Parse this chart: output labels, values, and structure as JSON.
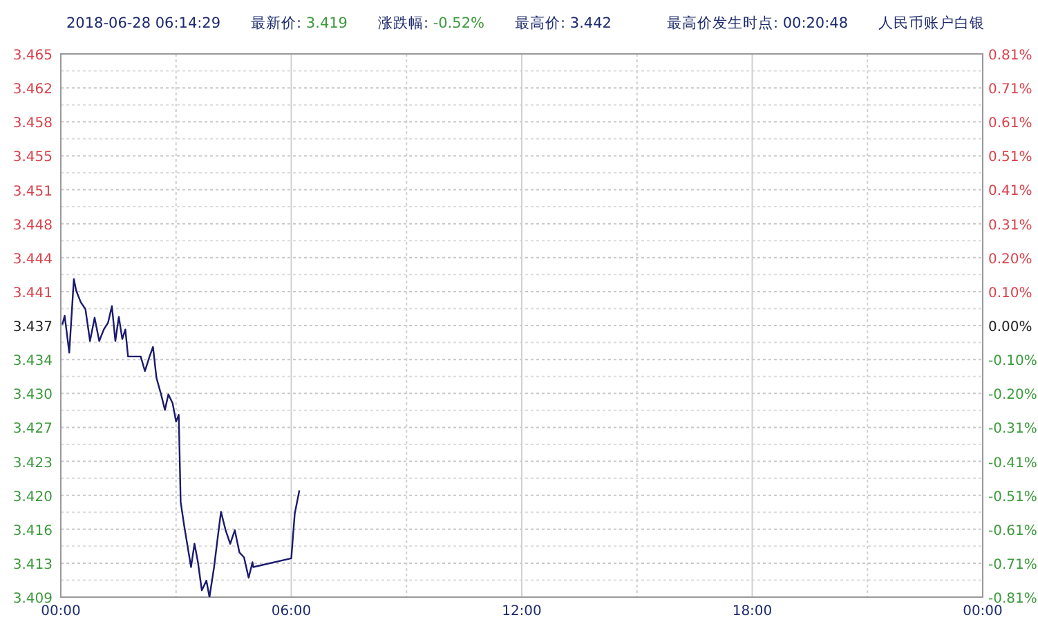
{
  "chart_data": {
    "type": "line",
    "title": "人民币账户白银",
    "annotations": [
      "2018-06-28 06:14:29",
      "最新价: 3.419",
      "涨跌幅: -0.52%",
      "最高价: 3.442",
      "最高价发生时点: 00:20:48"
    ],
    "x": [
      0.04,
      0.1,
      0.22,
      0.34,
      0.4,
      0.52,
      0.64,
      0.76,
      0.88,
      1.0,
      1.12,
      1.23,
      1.33,
      1.42,
      1.51,
      1.6,
      1.68,
      1.75,
      1.9,
      2.08,
      2.19,
      2.31,
      2.4,
      2.49,
      2.61,
      2.71,
      2.8,
      2.91,
      3.0,
      3.07,
      3.12,
      3.21,
      3.39,
      3.48,
      3.57,
      3.67,
      3.79,
      3.87,
      3.99,
      4.08,
      4.17,
      4.29,
      4.41,
      4.53,
      4.65,
      4.77,
      4.89,
      4.99,
      5.01,
      6.0,
      6.09,
      6.21
    ],
    "series": [
      {
        "color": "#1a1a6e",
        "values": [
          3.4371,
          3.438,
          3.4342,
          3.4418,
          3.4406,
          3.4394,
          3.4387,
          3.4354,
          3.4378,
          3.4354,
          3.4366,
          3.4373,
          3.439,
          3.4354,
          3.4379,
          3.4356,
          3.4366,
          3.4338,
          3.4338,
          3.4338,
          3.4323,
          3.4338,
          3.4348,
          3.4316,
          3.4299,
          3.4283,
          3.4299,
          3.429,
          3.4271,
          3.4278,
          3.4188,
          3.4164,
          3.4121,
          3.4145,
          3.4126,
          3.4097,
          3.4107,
          3.409,
          3.4121,
          3.415,
          3.4178,
          3.4159,
          3.4145,
          3.4159,
          3.4136,
          3.4131,
          3.411,
          3.4126,
          3.4121,
          3.413,
          3.4176,
          3.42
        ]
      }
    ],
    "xlim": [
      0,
      24
    ],
    "xticks": [
      {
        "value": 0,
        "label": "00:00"
      },
      {
        "value": 3,
        "label": null
      },
      {
        "value": 6,
        "label": "06:00"
      },
      {
        "value": 9,
        "label": null
      },
      {
        "value": 12,
        "label": "12:00"
      },
      {
        "value": 15,
        "label": null
      },
      {
        "value": 18,
        "label": "18:00"
      },
      {
        "value": 21,
        "label": null
      },
      {
        "value": 24,
        "label": "00:00"
      }
    ],
    "ylim": [
      3.409,
      3.465
    ],
    "yticks": [
      3.409,
      {
        "value": 3.4125,
        "label": "3.413"
      },
      3.416,
      {
        "value": 3.4195,
        "label": "3.420"
      },
      3.423,
      {
        "value": 3.4265,
        "label": "3.427"
      },
      {
        "value": 3.43,
        "label": "3.430"
      },
      {
        "value": 3.4335,
        "label": "3.434"
      },
      3.437,
      {
        "value": 3.4405,
        "label": "3.441"
      },
      3.444,
      {
        "value": 3.4475,
        "label": "3.448"
      },
      3.451,
      {
        "value": 3.4545,
        "label": "3.455"
      },
      3.458,
      {
        "value": 3.4615,
        "label": "3.462"
      },
      3.465,
      {
        "value": 3.41075,
        "label": null
      },
      {
        "value": 3.41425,
        "label": null
      },
      {
        "value": 3.41775,
        "label": null
      },
      {
        "value": 3.42125,
        "label": null
      },
      {
        "value": 3.42475,
        "label": null
      },
      {
        "value": 3.42825,
        "label": null
      },
      {
        "value": 3.43175,
        "label": null
      },
      {
        "value": 3.43525,
        "label": null
      },
      {
        "value": 3.43875,
        "label": null
      },
      {
        "value": 3.44225,
        "label": null
      },
      {
        "value": 3.44575,
        "label": null
      },
      {
        "value": 3.44925,
        "label": null
      },
      {
        "value": 3.45275,
        "label": null
      },
      {
        "value": 3.45625,
        "label": null
      },
      {
        "value": 3.45975,
        "label": null
      },
      {
        "value": 3.46325,
        "label": null
      }
    ],
    "y2lim": [
      -0.815,
      0.815
    ],
    "y2ticks": [
      {
        "value": -0.815,
        "label": "-0.81%"
      },
      {
        "value": -0.7133,
        "label": "-0.71%"
      },
      {
        "value": -0.6114,
        "label": "-0.61%"
      },
      {
        "value": -0.5095,
        "label": "-0.51%"
      },
      {
        "value": -0.4076,
        "label": "-0.41%"
      },
      {
        "value": -0.3057,
        "label": "-0.31%"
      },
      {
        "value": -0.2038,
        "label": "-0.20%"
      },
      {
        "value": -0.1019,
        "label": "-0.10%"
      },
      {
        "value": 0,
        "label": "0.00%"
      },
      {
        "value": 0.1019,
        "label": "0.10%"
      },
      {
        "value": 0.2038,
        "label": "0.20%"
      },
      {
        "value": 0.3057,
        "label": "0.31%"
      },
      {
        "value": 0.4076,
        "label": "0.41%"
      },
      {
        "value": 0.5095,
        "label": "0.51%"
      },
      {
        "value": 0.6114,
        "label": "0.61%"
      },
      {
        "value": 0.7133,
        "label": "0.71%"
      },
      {
        "value": 0.815,
        "label": "0.81%"
      }
    ],
    "grid": true
  }
}
